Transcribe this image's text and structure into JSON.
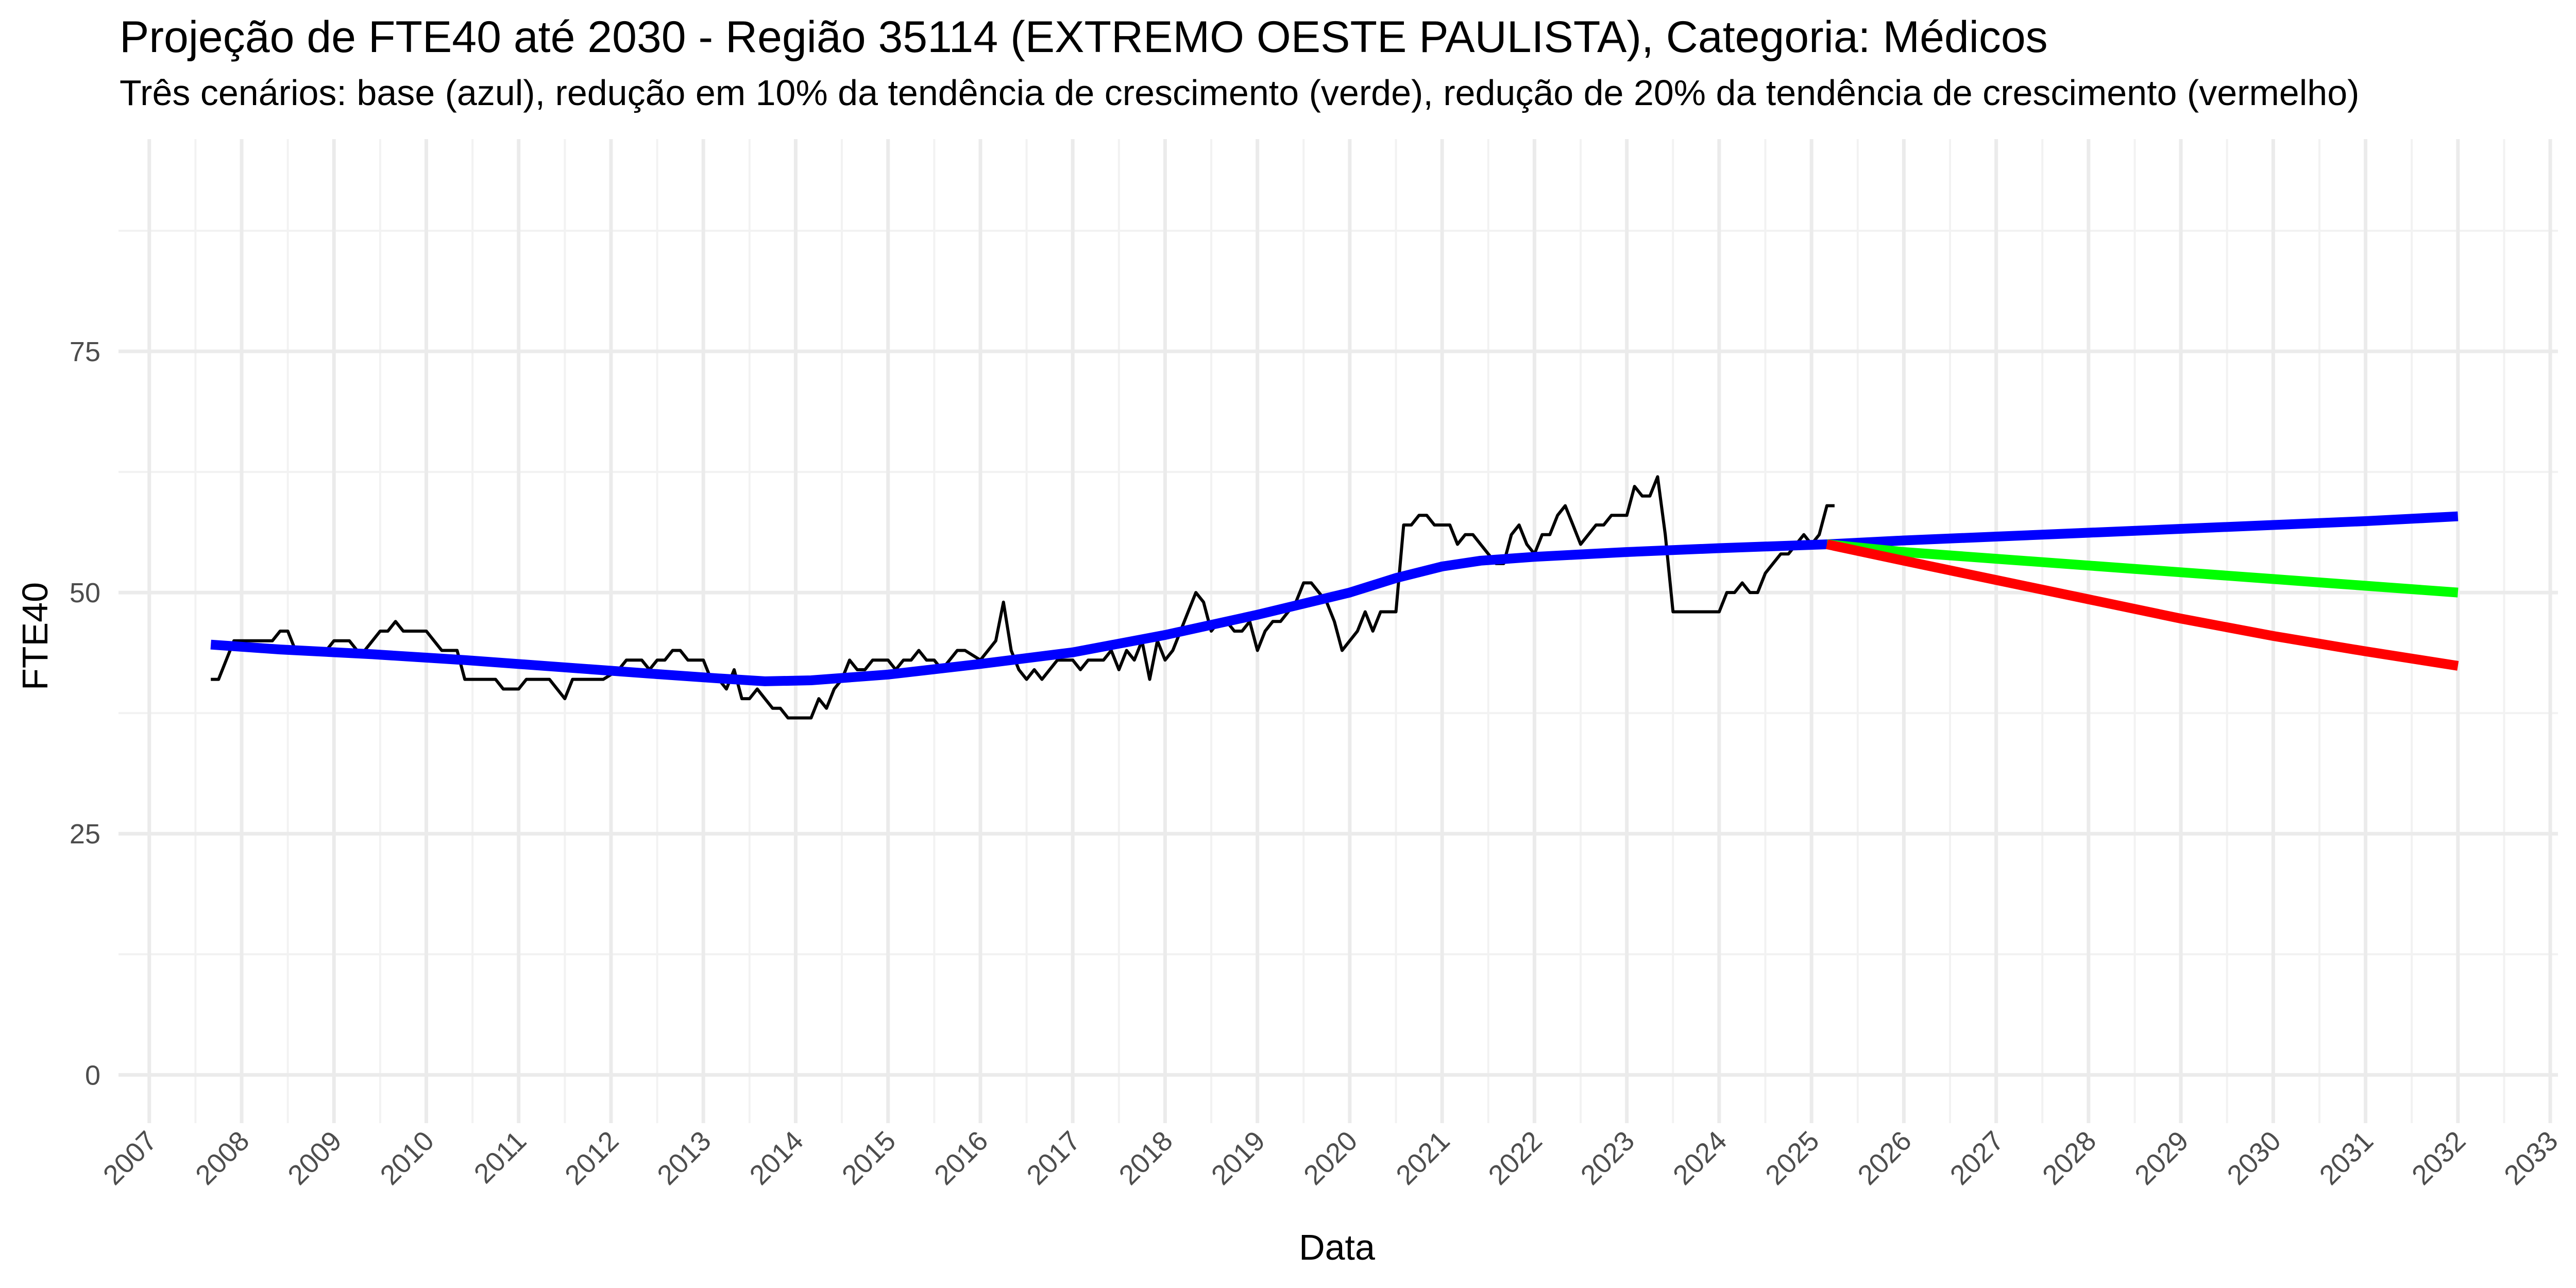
{
  "chart_data": {
    "type": "line",
    "title": "Projeção de FTE40 até 2030 - Região 35114 (EXTREMO OESTE PAULISTA), Categoria: Médicos",
    "subtitle": "Três cenários: base (azul), redução em 10% da tendência de crescimento (verde), redução de 20% da tendência de crescimento (vermelho)",
    "xlabel": "Data",
    "ylabel": "FTE40",
    "x_range": [
      "2006-09",
      "2033-02"
    ],
    "ylim": [
      -5,
      97
    ],
    "y_ticks": [
      0,
      25,
      50,
      75
    ],
    "x_ticks": [
      "2007",
      "2008",
      "2009",
      "2010",
      "2011",
      "2012",
      "2013",
      "2014",
      "2015",
      "2016",
      "2017",
      "2018",
      "2019",
      "2020",
      "2021",
      "2022",
      "2023",
      "2024",
      "2025",
      "2026",
      "2027",
      "2028",
      "2029",
      "2030",
      "2031",
      "2032",
      "2033"
    ],
    "grid": true,
    "legend": "none",
    "series": [
      {
        "color": "#000000",
        "line_width": "thin",
        "points": [
          [
            "2007-09",
            41
          ],
          [
            "2007-10",
            41
          ],
          [
            "2007-11",
            43
          ],
          [
            "2007-12",
            45
          ],
          [
            "2008-01",
            45
          ],
          [
            "2008-03",
            45
          ],
          [
            "2008-05",
            45
          ],
          [
            "2008-06",
            46
          ],
          [
            "2008-07",
            46
          ],
          [
            "2008-08",
            44
          ],
          [
            "2008-10",
            44
          ],
          [
            "2008-12",
            44
          ],
          [
            "2009-01",
            45
          ],
          [
            "2009-03",
            45
          ],
          [
            "2009-04",
            44
          ],
          [
            "2009-05",
            44
          ],
          [
            "2009-07",
            46
          ],
          [
            "2009-08",
            46
          ],
          [
            "2009-09",
            47
          ],
          [
            "2009-10",
            46
          ],
          [
            "2009-12",
            46
          ],
          [
            "2010-01",
            46
          ],
          [
            "2010-03",
            44
          ],
          [
            "2010-05",
            44
          ],
          [
            "2010-06",
            41
          ],
          [
            "2010-09",
            41
          ],
          [
            "2010-10",
            41
          ],
          [
            "2010-11",
            40
          ],
          [
            "2011-01",
            40
          ],
          [
            "2011-02",
            41
          ],
          [
            "2011-05",
            41
          ],
          [
            "2011-07",
            39
          ],
          [
            "2011-08",
            41
          ],
          [
            "2011-12",
            41
          ],
          [
            "2012-02",
            42
          ],
          [
            "2012-03",
            43
          ],
          [
            "2012-05",
            43
          ],
          [
            "2012-06",
            42
          ],
          [
            "2012-07",
            43
          ],
          [
            "2012-08",
            43
          ],
          [
            "2012-09",
            44
          ],
          [
            "2012-10",
            44
          ],
          [
            "2012-11",
            43
          ],
          [
            "2013-01",
            43
          ],
          [
            "2013-02",
            41
          ],
          [
            "2013-03",
            41
          ],
          [
            "2013-04",
            40
          ],
          [
            "2013-05",
            42
          ],
          [
            "2013-06",
            39
          ],
          [
            "2013-07",
            39
          ],
          [
            "2013-08",
            40
          ],
          [
            "2013-09",
            39
          ],
          [
            "2013-10",
            38
          ],
          [
            "2013-11",
            38
          ],
          [
            "2013-12",
            37
          ],
          [
            "2014-03",
            37
          ],
          [
            "2014-04",
            39
          ],
          [
            "2014-05",
            38
          ],
          [
            "2014-06",
            40
          ],
          [
            "2014-07",
            41
          ],
          [
            "2014-08",
            43
          ],
          [
            "2014-09",
            42
          ],
          [
            "2014-10",
            42
          ],
          [
            "2014-11",
            43
          ],
          [
            "2015-01",
            43
          ],
          [
            "2015-02",
            42
          ],
          [
            "2015-03",
            43
          ],
          [
            "2015-04",
            43
          ],
          [
            "2015-05",
            44
          ],
          [
            "2015-06",
            43
          ],
          [
            "2015-07",
            43
          ],
          [
            "2015-08",
            42
          ],
          [
            "2015-10",
            44
          ],
          [
            "2015-11",
            44
          ],
          [
            "2016-01",
            43
          ],
          [
            "2016-02",
            44
          ],
          [
            "2016-03",
            45
          ],
          [
            "2016-04",
            49
          ],
          [
            "2016-05",
            44
          ],
          [
            "2016-06",
            42
          ],
          [
            "2016-07",
            41
          ],
          [
            "2016-08",
            42
          ],
          [
            "2016-09",
            41
          ],
          [
            "2016-10",
            42
          ],
          [
            "2016-11",
            43
          ],
          [
            "2017-01",
            43
          ],
          [
            "2017-02",
            42
          ],
          [
            "2017-03",
            43
          ],
          [
            "2017-05",
            43
          ],
          [
            "2017-06",
            44
          ],
          [
            "2017-07",
            42
          ],
          [
            "2017-08",
            44
          ],
          [
            "2017-09",
            43
          ],
          [
            "2017-10",
            45
          ],
          [
            "2017-11",
            41
          ],
          [
            "2017-12",
            45
          ],
          [
            "2018-01",
            43
          ],
          [
            "2018-02",
            44
          ],
          [
            "2018-03",
            46
          ],
          [
            "2018-04",
            48
          ],
          [
            "2018-05",
            50
          ],
          [
            "2018-06",
            49
          ],
          [
            "2018-07",
            46
          ],
          [
            "2018-08",
            47
          ],
          [
            "2018-09",
            47
          ],
          [
            "2018-10",
            46
          ],
          [
            "2018-11",
            46
          ],
          [
            "2018-12",
            47
          ],
          [
            "2019-01",
            44
          ],
          [
            "2019-02",
            46
          ],
          [
            "2019-03",
            47
          ],
          [
            "2019-04",
            47
          ],
          [
            "2019-05",
            48
          ],
          [
            "2019-06",
            49
          ],
          [
            "2019-07",
            51
          ],
          [
            "2019-08",
            51
          ],
          [
            "2019-09",
            50
          ],
          [
            "2019-10",
            49
          ],
          [
            "2019-11",
            47
          ],
          [
            "2019-12",
            44
          ],
          [
            "2020-01",
            45
          ],
          [
            "2020-02",
            46
          ],
          [
            "2020-03",
            48
          ],
          [
            "2020-04",
            46
          ],
          [
            "2020-05",
            48
          ],
          [
            "2020-07",
            48
          ],
          [
            "2020-08",
            57
          ],
          [
            "2020-09",
            57
          ],
          [
            "2020-10",
            58
          ],
          [
            "2020-11",
            58
          ],
          [
            "2020-12",
            57
          ],
          [
            "2021-02",
            57
          ],
          [
            "2021-03",
            55
          ],
          [
            "2021-04",
            56
          ],
          [
            "2021-05",
            56
          ],
          [
            "2021-06",
            55
          ],
          [
            "2021-07",
            54
          ],
          [
            "2021-08",
            53
          ],
          [
            "2021-09",
            53
          ],
          [
            "2021-10",
            56
          ],
          [
            "2021-11",
            57
          ],
          [
            "2021-12",
            55
          ],
          [
            "2022-01",
            54
          ],
          [
            "2022-02",
            56
          ],
          [
            "2022-03",
            56
          ],
          [
            "2022-04",
            58
          ],
          [
            "2022-05",
            59
          ],
          [
            "2022-06",
            57
          ],
          [
            "2022-07",
            55
          ],
          [
            "2022-08",
            56
          ],
          [
            "2022-09",
            57
          ],
          [
            "2022-10",
            57
          ],
          [
            "2022-11",
            58
          ],
          [
            "2023-01",
            58
          ],
          [
            "2023-02",
            61
          ],
          [
            "2023-03",
            60
          ],
          [
            "2023-04",
            60
          ],
          [
            "2023-05",
            62
          ],
          [
            "2023-06",
            56
          ],
          [
            "2023-07",
            48
          ],
          [
            "2023-08",
            48
          ],
          [
            "2024-01",
            48
          ],
          [
            "2024-02",
            50
          ],
          [
            "2024-03",
            50
          ],
          [
            "2024-04",
            51
          ],
          [
            "2024-05",
            50
          ],
          [
            "2024-06",
            50
          ],
          [
            "2024-07",
            52
          ],
          [
            "2024-08",
            53
          ],
          [
            "2024-09",
            54
          ],
          [
            "2024-10",
            54
          ],
          [
            "2024-11",
            55
          ],
          [
            "2024-12",
            56
          ],
          [
            "2025-01",
            55
          ],
          [
            "2025-02",
            56
          ],
          [
            "2025-03",
            59
          ],
          [
            "2025-04",
            59
          ]
        ]
      },
      {
        "color": "#0000FF",
        "line_width": "thick",
        "points": [
          [
            "2007-09",
            44.6
          ],
          [
            "2008-06",
            44.1
          ],
          [
            "2009-06",
            43.6
          ],
          [
            "2010-06",
            43.0
          ],
          [
            "2011-06",
            42.3
          ],
          [
            "2012-06",
            41.6
          ],
          [
            "2013-03",
            41.1
          ],
          [
            "2013-09",
            40.8
          ],
          [
            "2014-03",
            40.9
          ],
          [
            "2015-01",
            41.5
          ],
          [
            "2016-01",
            42.6
          ],
          [
            "2017-01",
            43.8
          ],
          [
            "2018-01",
            45.6
          ],
          [
            "2019-01",
            47.7
          ],
          [
            "2020-01",
            50.0
          ],
          [
            "2020-07",
            51.5
          ],
          [
            "2021-01",
            52.7
          ],
          [
            "2021-06",
            53.3
          ],
          [
            "2022-01",
            53.7
          ],
          [
            "2023-01",
            54.2
          ],
          [
            "2024-01",
            54.6
          ],
          [
            "2025-03",
            55.0
          ],
          [
            "2026-01",
            55.4
          ],
          [
            "2027-01",
            55.8
          ],
          [
            "2028-01",
            56.2
          ],
          [
            "2029-01",
            56.6
          ],
          [
            "2030-01",
            57.0
          ],
          [
            "2031-01",
            57.4
          ],
          [
            "2032-01",
            57.9
          ]
        ]
      },
      {
        "color": "#00FF00",
        "line_width": "thick",
        "points": [
          [
            "2025-03",
            55.0
          ],
          [
            "2026-01",
            54.2
          ],
          [
            "2027-01",
            53.5
          ],
          [
            "2028-01",
            52.8
          ],
          [
            "2029-01",
            52.1
          ],
          [
            "2030-01",
            51.4
          ],
          [
            "2031-01",
            50.7
          ],
          [
            "2032-01",
            50.0
          ]
        ]
      },
      {
        "color": "#FF0000",
        "line_width": "thick",
        "points": [
          [
            "2025-03",
            55.0
          ],
          [
            "2026-01",
            53.3
          ],
          [
            "2027-01",
            51.3
          ],
          [
            "2028-01",
            49.3
          ],
          [
            "2029-01",
            47.3
          ],
          [
            "2030-01",
            45.5
          ],
          [
            "2031-01",
            43.9
          ],
          [
            "2032-01",
            42.4
          ]
        ]
      }
    ]
  }
}
